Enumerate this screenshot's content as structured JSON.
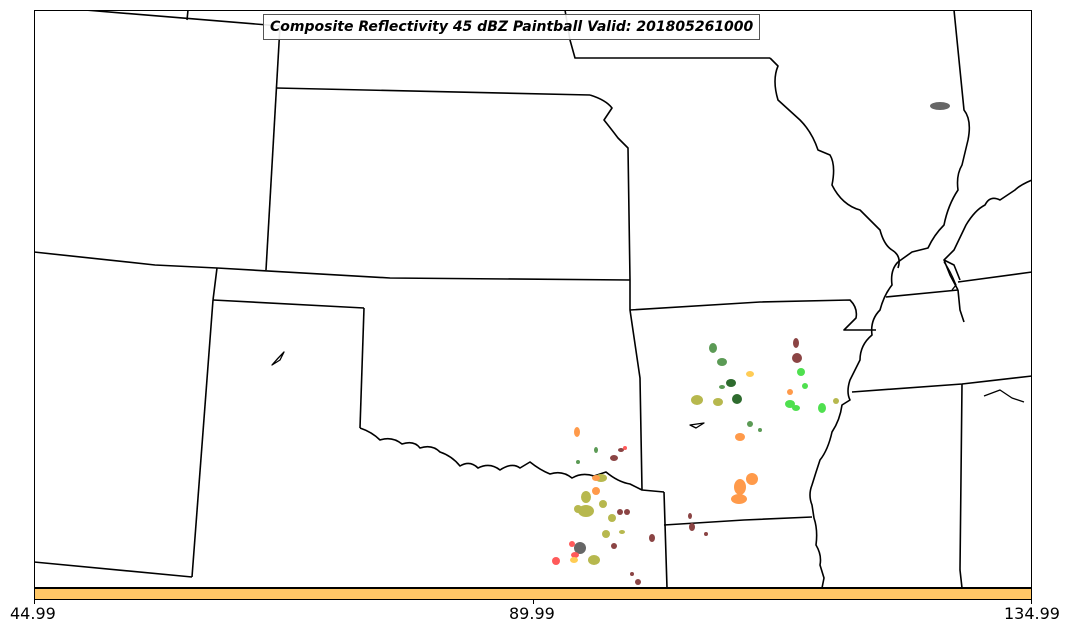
{
  "title": "Composite Reflectivity 45 dBZ Paintball Valid: 201805261000",
  "colorbar": {
    "color": "#ffc766",
    "ticks": [
      "44.99",
      "89.99",
      "134.99"
    ]
  },
  "map": {
    "boundary_color": "#000000",
    "paintball_colors": [
      "#5b9a55",
      "#8b4444",
      "#ff9a4a",
      "#b7b84e",
      "#4fe04f",
      "#666666",
      "#ff5a5a",
      "#2e6b2e",
      "#ffcc55"
    ]
  }
}
